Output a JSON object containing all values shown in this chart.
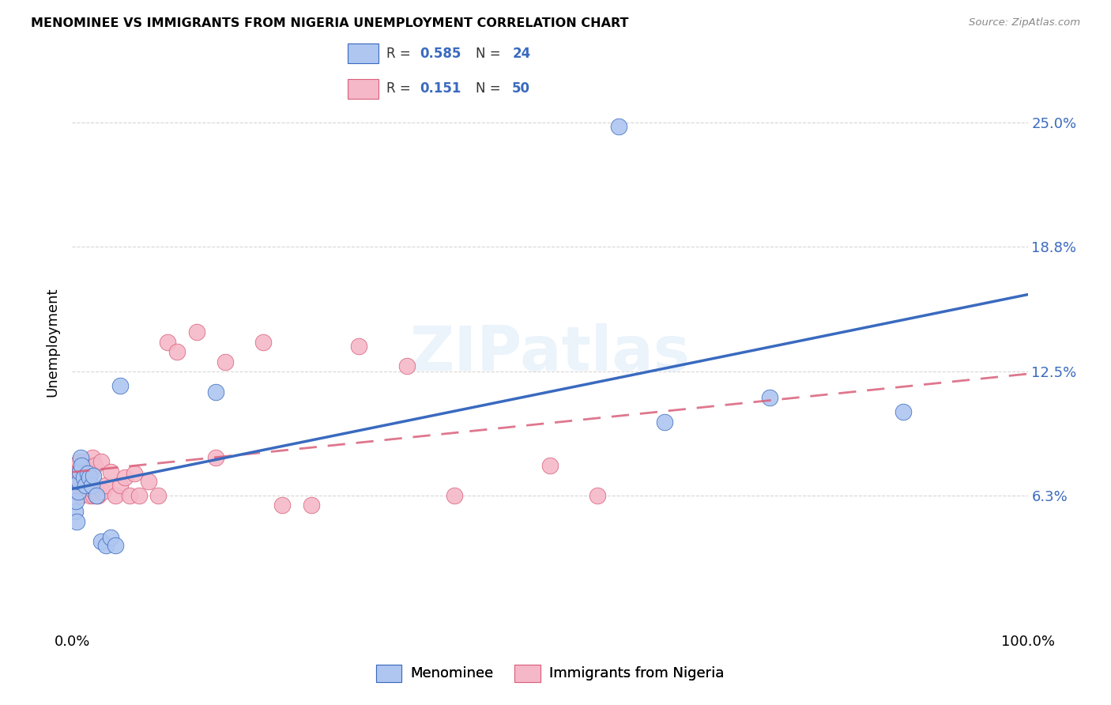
{
  "title": "MENOMINEE VS IMMIGRANTS FROM NIGERIA UNEMPLOYMENT CORRELATION CHART",
  "source": "Source: ZipAtlas.com",
  "ylabel": "Unemployment",
  "y_ticks": [
    0.063,
    0.125,
    0.188,
    0.25
  ],
  "y_tick_labels": [
    "6.3%",
    "12.5%",
    "18.8%",
    "25.0%"
  ],
  "xlim": [
    0.0,
    1.0
  ],
  "ylim": [
    -0.005,
    0.285
  ],
  "menominee_R": "0.585",
  "menominee_N": "24",
  "nigeria_R": "0.151",
  "nigeria_N": "50",
  "menominee_color": "#aec6f0",
  "nigeria_color": "#f5b8c8",
  "menominee_line_color": "#3a6abf",
  "nigeria_line_color": "#d95f7a",
  "legend_label_1": "Menominee",
  "legend_label_2": "Immigrants from Nigeria",
  "background_color": "#ffffff",
  "grid_color": "#cccccc",
  "watermark": "ZIPatlas"
}
